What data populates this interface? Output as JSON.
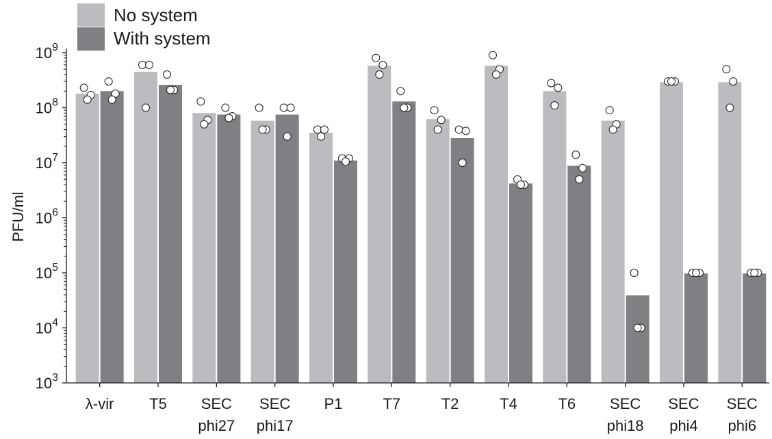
{
  "chart_data": {
    "type": "bar",
    "title": "",
    "xlabel": "",
    "ylabel": "PFU/ml",
    "yscale": "log",
    "ylim": [
      1000,
      1000000000
    ],
    "y_ticks": [
      {
        "value": 1000,
        "base": "10",
        "exp": "3"
      },
      {
        "value": 10000,
        "base": "10",
        "exp": "4"
      },
      {
        "value": 100000,
        "base": "10",
        "exp": "5"
      },
      {
        "value": 1000000,
        "base": "10",
        "exp": "6"
      },
      {
        "value": 10000000,
        "base": "10",
        "exp": "7"
      },
      {
        "value": 100000000,
        "base": "10",
        "exp": "8"
      },
      {
        "value": 1000000000,
        "base": "10",
        "exp": "9"
      }
    ],
    "grid": false,
    "legend_position": "top-left",
    "categories": [
      [
        "λ-vir"
      ],
      [
        "T5"
      ],
      [
        "SEC",
        "phi27"
      ],
      [
        "SEC",
        "phi17"
      ],
      [
        "P1"
      ],
      [
        "T7"
      ],
      [
        "T2"
      ],
      [
        "T4"
      ],
      [
        "T6"
      ],
      [
        "SEC",
        "phi18"
      ],
      [
        "SEC",
        "phi4"
      ],
      [
        "SEC",
        "phi6"
      ]
    ],
    "series": [
      {
        "name": "No system",
        "color": "#bbbcbf",
        "values": [
          180000000,
          450000000,
          80000000,
          58000000,
          35000000,
          580000000,
          62000000,
          580000000,
          200000000,
          58000000,
          290000000,
          290000000
        ],
        "points": [
          [
            230000000,
            170000000,
            140000000
          ],
          [
            600000000,
            600000000,
            100000000
          ],
          [
            130000000,
            60000000,
            50000000
          ],
          [
            100000000,
            40000000,
            40000000
          ],
          [
            40000000,
            40000000,
            30000000
          ],
          [
            800000000,
            600000000,
            400000000
          ],
          [
            90000000,
            60000000,
            40000000
          ],
          [
            900000000,
            500000000,
            400000000
          ],
          [
            280000000,
            230000000,
            110000000
          ],
          [
            90000000,
            50000000,
            40000000
          ],
          [
            300000000,
            300000000,
            300000000
          ],
          [
            500000000,
            300000000,
            100000000
          ]
        ]
      },
      {
        "name": "With system",
        "color": "#7f8084",
        "values": [
          200000000,
          260000000,
          75000000,
          75000000,
          11000000,
          130000000,
          28000000,
          4200000,
          8800000,
          39000,
          98000,
          98000
        ],
        "points": [
          [
            300000000,
            180000000,
            140000000
          ],
          [
            400000000,
            210000000,
            210000000
          ],
          [
            100000000,
            70000000,
            65000000
          ],
          [
            100000000,
            100000000,
            30000000
          ],
          [
            12000000,
            12000000,
            10500000
          ],
          [
            200000000,
            100000000,
            100000000
          ],
          [
            40000000,
            38000000,
            10000000
          ],
          [
            5000000,
            4000000,
            4000000
          ],
          [
            14000000,
            8000000,
            5000000
          ],
          [
            100000,
            10000,
            10000
          ],
          [
            100000,
            100000,
            100000
          ],
          [
            100000,
            100000,
            100000
          ]
        ]
      }
    ]
  }
}
